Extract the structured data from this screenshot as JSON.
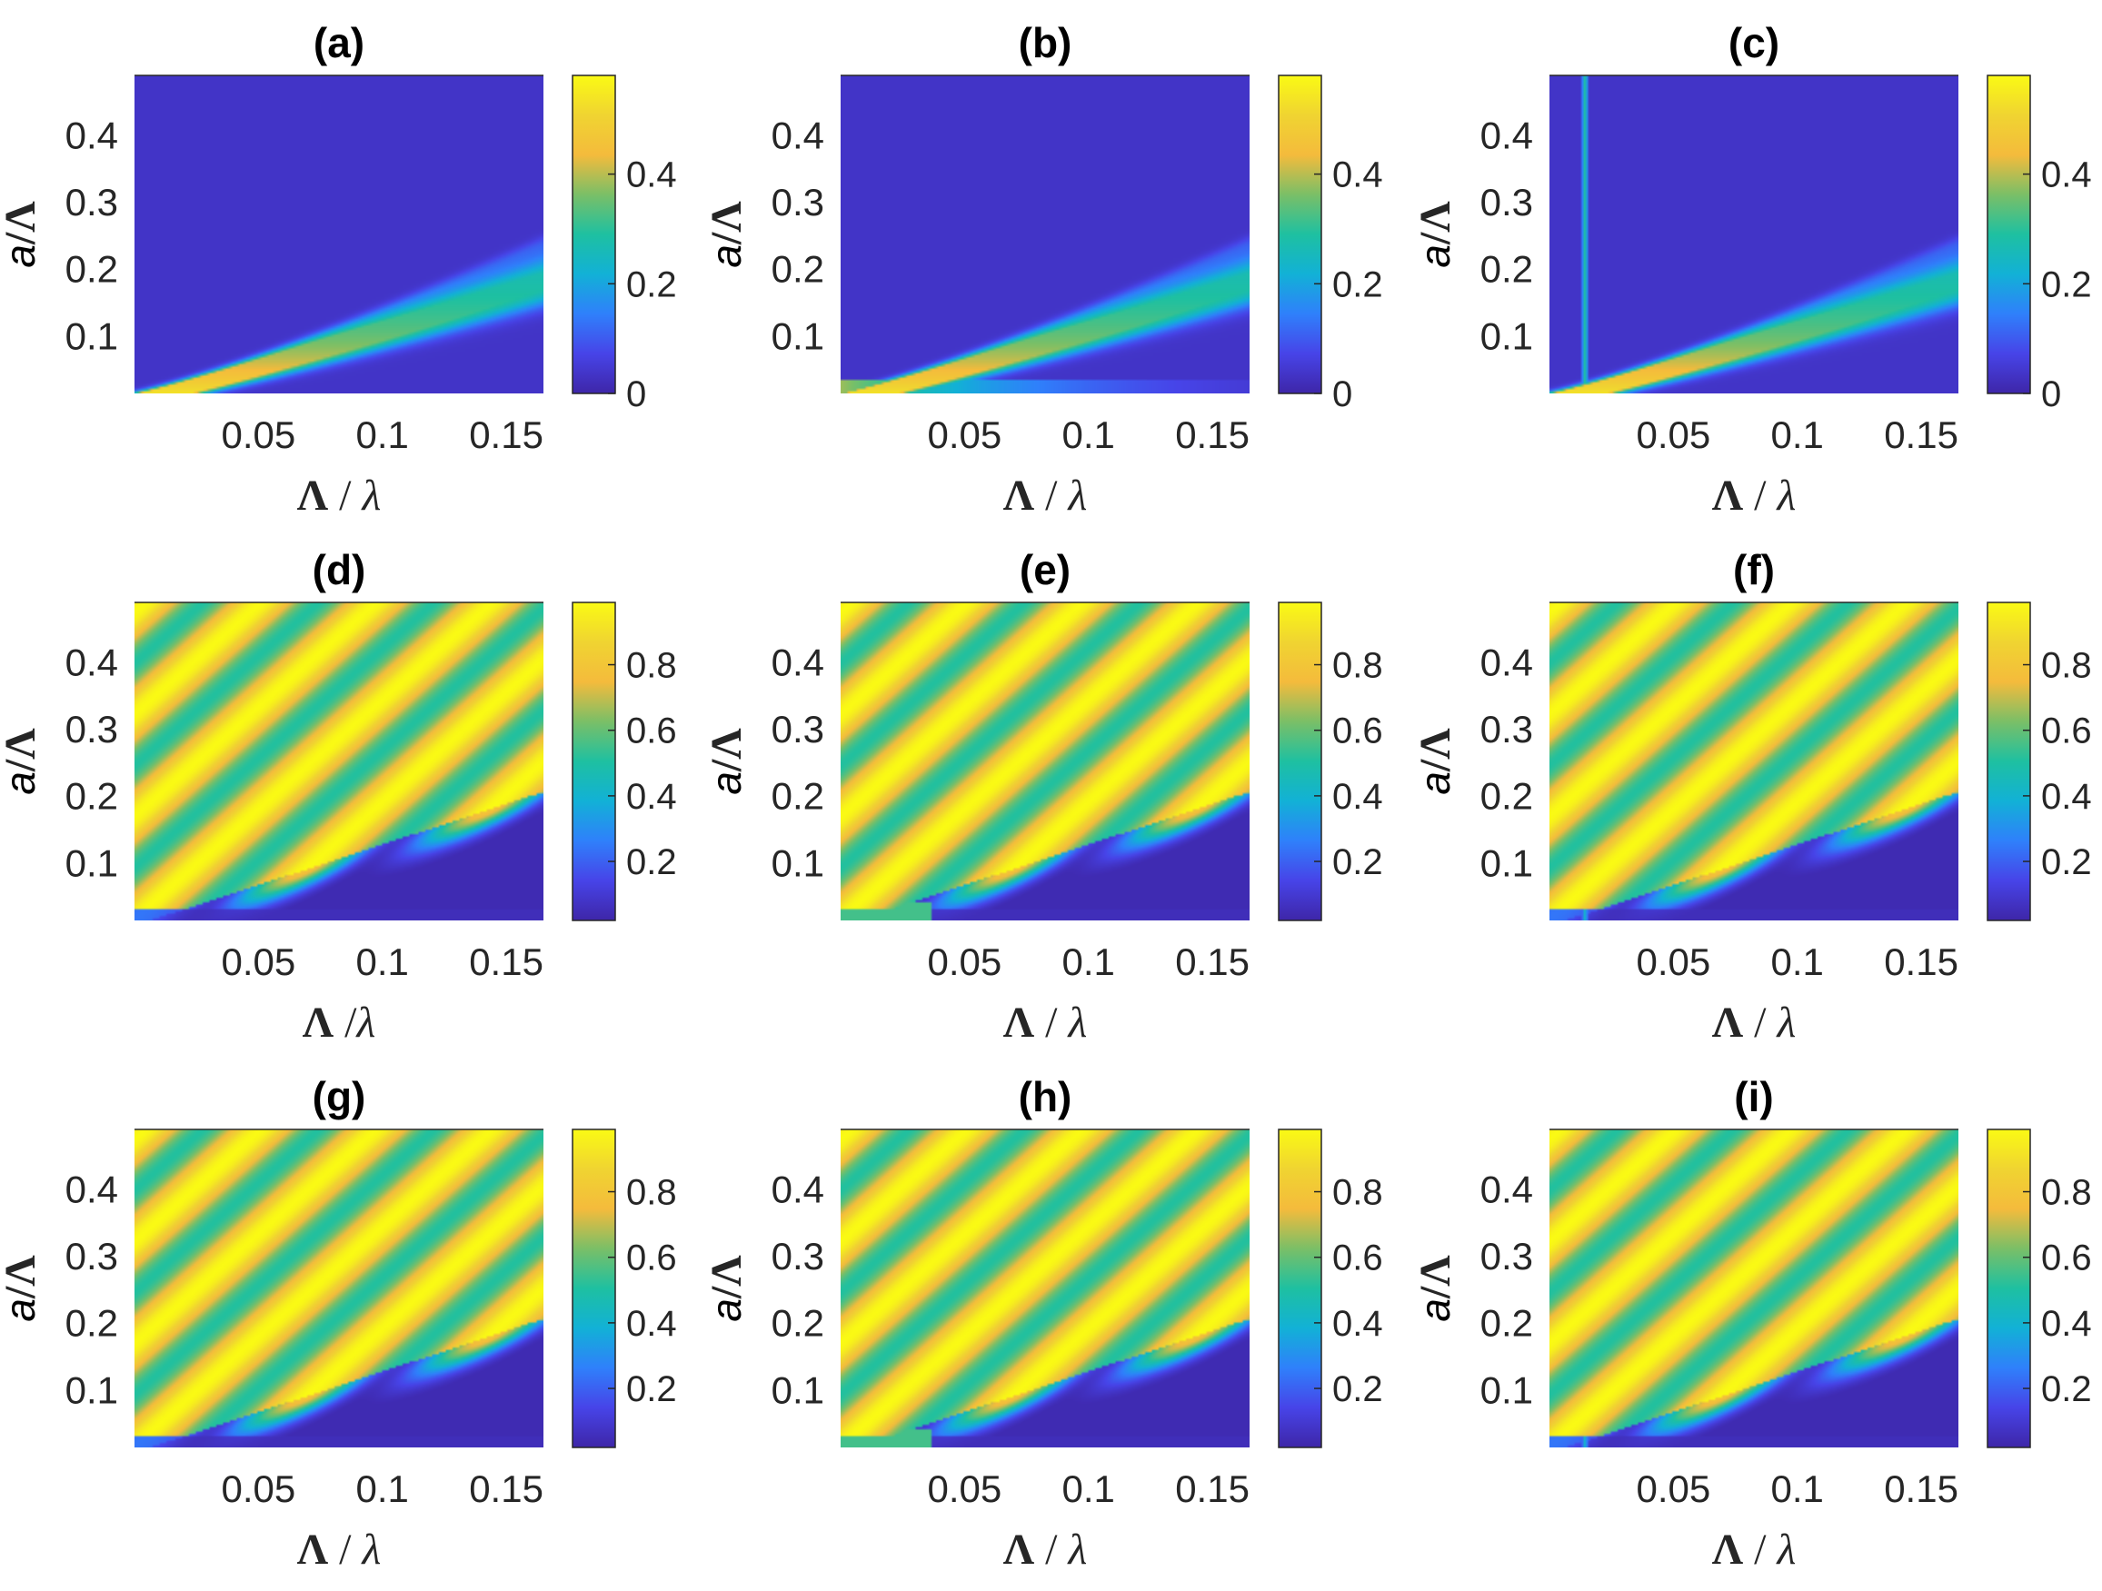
{
  "figure": {
    "colormap": [
      "#3E26A8",
      "#4744E8",
      "#2F80FB",
      "#12B1D6",
      "#1EC0A1",
      "#7ABF67",
      "#F4BB3C",
      "#F0D431",
      "#FAFA14"
    ]
  },
  "chart_data": [
    {
      "panel": "(a)",
      "type": "heatmap",
      "row": 0,
      "col": 0,
      "variant": "base",
      "xlabel_main": "Λ",
      "xlabel_sep": " / ",
      "xlabel_var": "λ",
      "ylabel_var": "a",
      "ylabel_main": "/Λ",
      "xlim": [
        0,
        0.165
      ],
      "ylim": [
        0.015,
        0.49
      ],
      "xticks": [
        {
          "v": 0.05,
          "label": "0.05"
        },
        {
          "v": 0.1,
          "label": "0.1"
        },
        {
          "v": 0.15,
          "label": "0.15"
        }
      ],
      "yticks": [
        {
          "v": 0.1,
          "label": "0.1"
        },
        {
          "v": 0.2,
          "label": "0.2"
        },
        {
          "v": 0.3,
          "label": "0.3"
        },
        {
          "v": 0.4,
          "label": "0.4"
        }
      ],
      "clim": [
        0,
        0.58
      ],
      "cticks": [
        {
          "v": 0,
          "label": "0"
        },
        {
          "v": 0.2,
          "label": "0.2"
        },
        {
          "v": 0.4,
          "label": "0.4"
        }
      ]
    },
    {
      "panel": "(b)",
      "type": "heatmap",
      "row": 0,
      "col": 1,
      "variant": "bottom",
      "xlabel_main": "Λ",
      "xlabel_sep": " / ",
      "xlabel_var": "λ",
      "ylabel_var": "a",
      "ylabel_main": "/Λ",
      "xlim": [
        0,
        0.165
      ],
      "ylim": [
        0.015,
        0.49
      ],
      "xticks": [
        {
          "v": 0.05,
          "label": "0.05"
        },
        {
          "v": 0.1,
          "label": "0.1"
        },
        {
          "v": 0.15,
          "label": "0.15"
        }
      ],
      "yticks": [
        {
          "v": 0.1,
          "label": "0.1"
        },
        {
          "v": 0.2,
          "label": "0.2"
        },
        {
          "v": 0.3,
          "label": "0.3"
        },
        {
          "v": 0.4,
          "label": "0.4"
        }
      ],
      "clim": [
        0,
        0.58
      ],
      "cticks": [
        {
          "v": 0,
          "label": "0"
        },
        {
          "v": 0.2,
          "label": "0.2"
        },
        {
          "v": 0.4,
          "label": "0.4"
        }
      ]
    },
    {
      "panel": "(c)",
      "type": "heatmap",
      "row": 0,
      "col": 2,
      "variant": "line",
      "xlabel_main": "Λ",
      "xlabel_sep": " / ",
      "xlabel_var": "λ",
      "ylabel_var": "a",
      "ylabel_main": "/Λ",
      "xlim": [
        0,
        0.165
      ],
      "ylim": [
        0.015,
        0.49
      ],
      "xticks": [
        {
          "v": 0.05,
          "label": "0.05"
        },
        {
          "v": 0.1,
          "label": "0.1"
        },
        {
          "v": 0.15,
          "label": "0.15"
        }
      ],
      "yticks": [
        {
          "v": 0.1,
          "label": "0.1"
        },
        {
          "v": 0.2,
          "label": "0.2"
        },
        {
          "v": 0.3,
          "label": "0.3"
        },
        {
          "v": 0.4,
          "label": "0.4"
        }
      ],
      "clim": [
        0,
        0.58
      ],
      "cticks": [
        {
          "v": 0,
          "label": "0"
        },
        {
          "v": 0.2,
          "label": "0.2"
        },
        {
          "v": 0.4,
          "label": "0.4"
        }
      ]
    },
    {
      "panel": "(d)",
      "type": "heatmap",
      "row": 1,
      "col": 0,
      "variant": "base",
      "xlabel_main": "Λ",
      "xlabel_sep": " /",
      "xlabel_var": "λ",
      "ylabel_var": "a",
      "ylabel_main": "/Λ",
      "xlim": [
        0,
        0.165
      ],
      "ylim": [
        0.015,
        0.49
      ],
      "xticks": [
        {
          "v": 0.05,
          "label": "0.05"
        },
        {
          "v": 0.1,
          "label": "0.1"
        },
        {
          "v": 0.15,
          "label": "0.15"
        }
      ],
      "yticks": [
        {
          "v": 0.1,
          "label": "0.1"
        },
        {
          "v": 0.2,
          "label": "0.2"
        },
        {
          "v": 0.3,
          "label": "0.3"
        },
        {
          "v": 0.4,
          "label": "0.4"
        }
      ],
      "clim": [
        0.02,
        0.99
      ],
      "cticks": [
        {
          "v": 0.2,
          "label": "0.2"
        },
        {
          "v": 0.4,
          "label": "0.4"
        },
        {
          "v": 0.6,
          "label": "0.6"
        },
        {
          "v": 0.8,
          "label": "0.8"
        }
      ]
    },
    {
      "panel": "(e)",
      "type": "heatmap",
      "row": 1,
      "col": 1,
      "variant": "bottom",
      "xlabel_main": "Λ",
      "xlabel_sep": " / ",
      "xlabel_var": "λ",
      "ylabel_var": "a",
      "ylabel_main": "/Λ",
      "xlim": [
        0,
        0.165
      ],
      "ylim": [
        0.015,
        0.49
      ],
      "xticks": [
        {
          "v": 0.05,
          "label": "0.05"
        },
        {
          "v": 0.1,
          "label": "0.1"
        },
        {
          "v": 0.15,
          "label": "0.15"
        }
      ],
      "yticks": [
        {
          "v": 0.1,
          "label": "0.1"
        },
        {
          "v": 0.2,
          "label": "0.2"
        },
        {
          "v": 0.3,
          "label": "0.3"
        },
        {
          "v": 0.4,
          "label": "0.4"
        }
      ],
      "clim": [
        0.02,
        0.99
      ],
      "cticks": [
        {
          "v": 0.2,
          "label": "0.2"
        },
        {
          "v": 0.4,
          "label": "0.4"
        },
        {
          "v": 0.6,
          "label": "0.6"
        },
        {
          "v": 0.8,
          "label": "0.8"
        }
      ]
    },
    {
      "panel": "(f)",
      "type": "heatmap",
      "row": 1,
      "col": 2,
      "variant": "line",
      "xlabel_main": "Λ",
      "xlabel_sep": " / ",
      "xlabel_var": "λ",
      "ylabel_var": "a",
      "ylabel_main": "/Λ",
      "xlim": [
        0,
        0.165
      ],
      "ylim": [
        0.015,
        0.49
      ],
      "xticks": [
        {
          "v": 0.05,
          "label": "0.05"
        },
        {
          "v": 0.1,
          "label": "0.1"
        },
        {
          "v": 0.15,
          "label": "0.15"
        }
      ],
      "yticks": [
        {
          "v": 0.1,
          "label": "0.1"
        },
        {
          "v": 0.2,
          "label": "0.2"
        },
        {
          "v": 0.3,
          "label": "0.3"
        },
        {
          "v": 0.4,
          "label": "0.4"
        }
      ],
      "clim": [
        0.02,
        0.99
      ],
      "cticks": [
        {
          "v": 0.2,
          "label": "0.2"
        },
        {
          "v": 0.4,
          "label": "0.4"
        },
        {
          "v": 0.6,
          "label": "0.6"
        },
        {
          "v": 0.8,
          "label": "0.8"
        }
      ]
    },
    {
      "panel": "(g)",
      "type": "heatmap",
      "row": 2,
      "col": 0,
      "variant": "base",
      "xlabel_main": "Λ",
      "xlabel_sep": " / ",
      "xlabel_var": "λ",
      "ylabel_var": "a",
      "ylabel_main": "/Λ",
      "xlim": [
        0,
        0.165
      ],
      "ylim": [
        0.015,
        0.49
      ],
      "xticks": [
        {
          "v": 0.05,
          "label": "0.05"
        },
        {
          "v": 0.1,
          "label": "0.1"
        },
        {
          "v": 0.15,
          "label": "0.15"
        }
      ],
      "yticks": [
        {
          "v": 0.1,
          "label": "0.1"
        },
        {
          "v": 0.2,
          "label": "0.2"
        },
        {
          "v": 0.3,
          "label": "0.3"
        },
        {
          "v": 0.4,
          "label": "0.4"
        }
      ],
      "clim": [
        0.02,
        0.99
      ],
      "cticks": [
        {
          "v": 0.2,
          "label": "0.2"
        },
        {
          "v": 0.4,
          "label": "0.4"
        },
        {
          "v": 0.6,
          "label": "0.6"
        },
        {
          "v": 0.8,
          "label": "0.8"
        }
      ]
    },
    {
      "panel": "(h)",
      "type": "heatmap",
      "row": 2,
      "col": 1,
      "variant": "bottom",
      "xlabel_main": "Λ",
      "xlabel_sep": " / ",
      "xlabel_var": "λ",
      "ylabel_var": "a",
      "ylabel_main": "/Λ",
      "xlim": [
        0,
        0.165
      ],
      "ylim": [
        0.015,
        0.49
      ],
      "xticks": [
        {
          "v": 0.05,
          "label": "0.05"
        },
        {
          "v": 0.1,
          "label": "0.1"
        },
        {
          "v": 0.15,
          "label": "0.15"
        }
      ],
      "yticks": [
        {
          "v": 0.1,
          "label": "0.1"
        },
        {
          "v": 0.2,
          "label": "0.2"
        },
        {
          "v": 0.3,
          "label": "0.3"
        },
        {
          "v": 0.4,
          "label": "0.4"
        }
      ],
      "clim": [
        0.02,
        0.99
      ],
      "cticks": [
        {
          "v": 0.2,
          "label": "0.2"
        },
        {
          "v": 0.4,
          "label": "0.4"
        },
        {
          "v": 0.6,
          "label": "0.6"
        },
        {
          "v": 0.8,
          "label": "0.8"
        }
      ]
    },
    {
      "panel": "(i)",
      "type": "heatmap",
      "row": 2,
      "col": 2,
      "variant": "line",
      "xlabel_main": "Λ",
      "xlabel_sep": " / ",
      "xlabel_var": "λ",
      "ylabel_var": "a",
      "ylabel_main": "/Λ",
      "xlim": [
        0,
        0.165
      ],
      "ylim": [
        0.015,
        0.49
      ],
      "xticks": [
        {
          "v": 0.05,
          "label": "0.05"
        },
        {
          "v": 0.1,
          "label": "0.1"
        },
        {
          "v": 0.15,
          "label": "0.15"
        }
      ],
      "yticks": [
        {
          "v": 0.1,
          "label": "0.1"
        },
        {
          "v": 0.2,
          "label": "0.2"
        },
        {
          "v": 0.3,
          "label": "0.3"
        },
        {
          "v": 0.4,
          "label": "0.4"
        }
      ],
      "clim": [
        0.02,
        0.99
      ],
      "cticks": [
        {
          "v": 0.2,
          "label": "0.2"
        },
        {
          "v": 0.4,
          "label": "0.4"
        },
        {
          "v": 0.6,
          "label": "0.6"
        },
        {
          "v": 0.8,
          "label": "0.8"
        }
      ]
    }
  ]
}
